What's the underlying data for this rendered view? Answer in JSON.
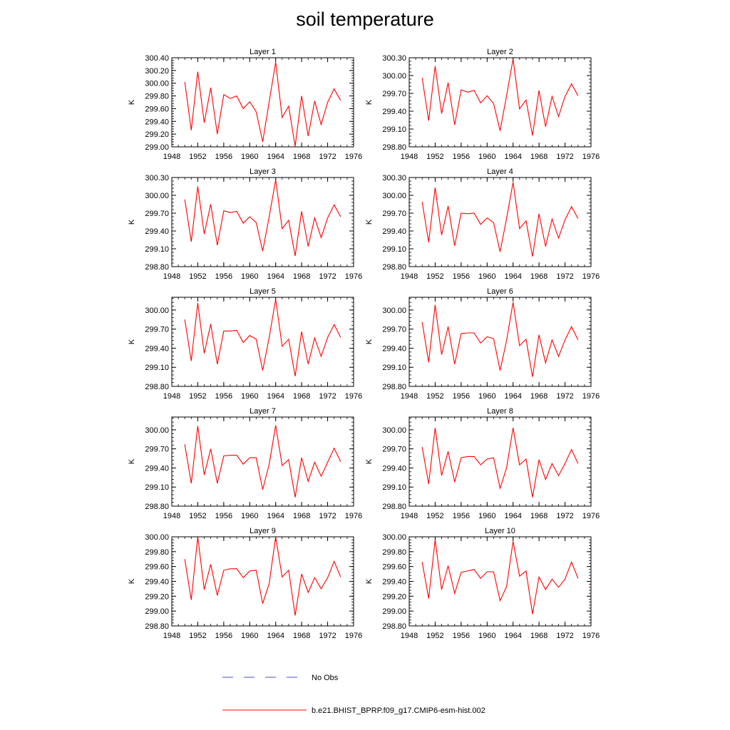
{
  "title": "soil temperature",
  "colors": {
    "model_line": "#ff0000",
    "obs_line": "#4b4bd0",
    "axis": "#000000"
  },
  "legend": {
    "obs_label": "No Obs",
    "model_label": "b.e21.BHIST_BPRP.f09_g17.CMIP6-esm-hist.002"
  },
  "chart_data": [
    {
      "type": "line",
      "title": "Layer 1",
      "ylabel": "K",
      "xlim": [
        1948,
        1976
      ],
      "ylim": [
        299.0,
        300.4
      ],
      "xticks": [
        1948,
        1952,
        1956,
        1960,
        1964,
        1968,
        1972,
        1976
      ],
      "yticks": [
        "299.00",
        "299.20",
        "299.40",
        "299.60",
        "299.80",
        "300.00",
        "300.20",
        "300.40"
      ],
      "x": [
        1950,
        1951,
        1952,
        1953,
        1954,
        1955,
        1956,
        1957,
        1958,
        1959,
        1960,
        1961,
        1962,
        1963,
        1964,
        1965,
        1966,
        1967,
        1968,
        1969,
        1970,
        1971,
        1972,
        1973,
        1974
      ],
      "series": [
        {
          "name": "b.e21.BHIST_BPRP.f09_g17.CMIP6-esm-hist.002",
          "values": [
            300.02,
            299.26,
            300.18,
            299.38,
            299.93,
            299.2,
            299.82,
            299.76,
            299.8,
            299.6,
            299.71,
            299.55,
            299.08,
            299.71,
            300.33,
            299.46,
            299.64,
            299.01,
            299.8,
            299.17,
            299.72,
            299.35,
            299.7,
            299.91,
            299.73
          ]
        }
      ]
    },
    {
      "type": "line",
      "title": "Layer 2",
      "ylabel": "K",
      "xlim": [
        1948,
        1976
      ],
      "ylim": [
        298.8,
        300.3
      ],
      "xticks": [
        1948,
        1952,
        1956,
        1960,
        1964,
        1968,
        1972,
        1976
      ],
      "yticks": [
        "298.80",
        "299.10",
        "299.40",
        "299.70",
        "300.00",
        "300.30"
      ],
      "x": [
        1950,
        1951,
        1952,
        1953,
        1954,
        1955,
        1956,
        1957,
        1958,
        1959,
        1960,
        1961,
        1962,
        1963,
        1964,
        1965,
        1966,
        1967,
        1968,
        1969,
        1970,
        1971,
        1972,
        1973,
        1974
      ],
      "series": [
        {
          "name": "b.e21.BHIST_BPRP.f09_g17.CMIP6-esm-hist.002",
          "values": [
            299.96,
            299.24,
            300.16,
            299.36,
            299.88,
            299.17,
            299.76,
            299.72,
            299.75,
            299.54,
            299.66,
            299.53,
            299.07,
            299.66,
            300.28,
            299.44,
            299.59,
            298.99,
            299.75,
            299.14,
            299.65,
            299.31,
            299.65,
            299.86,
            299.66
          ]
        }
      ]
    },
    {
      "type": "line",
      "title": "Layer 3",
      "ylabel": "K",
      "xlim": [
        1948,
        1976
      ],
      "ylim": [
        298.8,
        300.3
      ],
      "xticks": [
        1948,
        1952,
        1956,
        1960,
        1964,
        1968,
        1972,
        1976
      ],
      "yticks": [
        "298.80",
        "299.10",
        "299.40",
        "299.70",
        "300.00",
        "300.30"
      ],
      "x": [
        1950,
        1951,
        1952,
        1953,
        1954,
        1955,
        1956,
        1957,
        1958,
        1959,
        1960,
        1961,
        1962,
        1963,
        1964,
        1965,
        1966,
        1967,
        1968,
        1969,
        1970,
        1971,
        1972,
        1973,
        1974
      ],
      "series": [
        {
          "name": "b.e21.BHIST_BPRP.f09_g17.CMIP6-esm-hist.002",
          "values": [
            299.93,
            299.22,
            300.15,
            299.35,
            299.85,
            299.16,
            299.74,
            299.71,
            299.73,
            299.53,
            299.64,
            299.54,
            299.06,
            299.64,
            300.26,
            299.44,
            299.58,
            298.98,
            299.73,
            299.14,
            299.62,
            299.29,
            299.62,
            299.84,
            299.64
          ]
        }
      ]
    },
    {
      "type": "line",
      "title": "Layer 4",
      "ylabel": "K",
      "xlim": [
        1948,
        1976
      ],
      "ylim": [
        298.8,
        300.3
      ],
      "xticks": [
        1948,
        1952,
        1956,
        1960,
        1964,
        1968,
        1972,
        1976
      ],
      "yticks": [
        "298.80",
        "299.10",
        "299.40",
        "299.70",
        "300.00",
        "300.30"
      ],
      "x": [
        1950,
        1951,
        1952,
        1953,
        1954,
        1955,
        1956,
        1957,
        1958,
        1959,
        1960,
        1961,
        1962,
        1963,
        1964,
        1965,
        1966,
        1967,
        1968,
        1969,
        1970,
        1971,
        1972,
        1973,
        1974
      ],
      "series": [
        {
          "name": "b.e21.BHIST_BPRP.f09_g17.CMIP6-esm-hist.002",
          "values": [
            299.89,
            299.21,
            300.13,
            299.33,
            299.82,
            299.15,
            299.7,
            299.69,
            299.7,
            299.51,
            299.62,
            299.54,
            299.05,
            299.61,
            300.22,
            299.44,
            299.57,
            298.97,
            299.69,
            299.14,
            299.6,
            299.28,
            299.59,
            299.81,
            299.61
          ]
        }
      ]
    },
    {
      "type": "line",
      "title": "Layer 5",
      "ylabel": "K",
      "xlim": [
        1948,
        1976
      ],
      "ylim": [
        298.8,
        300.2
      ],
      "xticks": [
        1948,
        1952,
        1956,
        1960,
        1964,
        1968,
        1972,
        1976
      ],
      "yticks": [
        "298.80",
        "299.10",
        "299.40",
        "299.70",
        "300.00"
      ],
      "x": [
        1950,
        1951,
        1952,
        1953,
        1954,
        1955,
        1956,
        1957,
        1958,
        1959,
        1960,
        1961,
        1962,
        1963,
        1964,
        1965,
        1966,
        1967,
        1968,
        1969,
        1970,
        1971,
        1972,
        1973,
        1974
      ],
      "series": [
        {
          "name": "b.e21.BHIST_BPRP.f09_g17.CMIP6-esm-hist.002",
          "values": [
            299.85,
            299.2,
            300.11,
            299.32,
            299.78,
            299.15,
            299.67,
            299.67,
            299.68,
            299.49,
            299.6,
            299.54,
            299.05,
            299.57,
            300.17,
            299.43,
            299.54,
            298.96,
            299.66,
            299.15,
            299.56,
            299.27,
            299.57,
            299.77,
            299.57
          ]
        }
      ]
    },
    {
      "type": "line",
      "title": "Layer 6",
      "ylabel": "K",
      "xlim": [
        1948,
        1976
      ],
      "ylim": [
        298.8,
        300.2
      ],
      "xticks": [
        1948,
        1952,
        1956,
        1960,
        1964,
        1968,
        1972,
        1976
      ],
      "yticks": [
        "298.80",
        "299.10",
        "299.40",
        "299.70",
        "300.00"
      ],
      "x": [
        1950,
        1951,
        1952,
        1953,
        1954,
        1955,
        1956,
        1957,
        1958,
        1959,
        1960,
        1961,
        1962,
        1963,
        1964,
        1965,
        1966,
        1967,
        1968,
        1969,
        1970,
        1971,
        1972,
        1973,
        1974
      ],
      "series": [
        {
          "name": "b.e21.BHIST_BPRP.f09_g17.CMIP6-esm-hist.002",
          "values": [
            299.81,
            299.18,
            300.08,
            299.3,
            299.74,
            299.15,
            299.63,
            299.64,
            299.64,
            299.48,
            299.58,
            299.55,
            299.05,
            299.52,
            300.12,
            299.44,
            299.54,
            298.95,
            299.61,
            299.17,
            299.53,
            299.27,
            299.53,
            299.74,
            299.53
          ]
        }
      ]
    },
    {
      "type": "line",
      "title": "Layer 7",
      "ylabel": "K",
      "xlim": [
        1948,
        1976
      ],
      "ylim": [
        298.8,
        300.2
      ],
      "xticks": [
        1948,
        1952,
        1956,
        1960,
        1964,
        1968,
        1972,
        1976
      ],
      "yticks": [
        "298.80",
        "299.10",
        "299.40",
        "299.70",
        "300.00"
      ],
      "x": [
        1950,
        1951,
        1952,
        1953,
        1954,
        1955,
        1956,
        1957,
        1958,
        1959,
        1960,
        1961,
        1962,
        1963,
        1964,
        1965,
        1966,
        1967,
        1968,
        1969,
        1970,
        1971,
        1972,
        1973,
        1974
      ],
      "series": [
        {
          "name": "b.e21.BHIST_BPRP.f09_g17.CMIP6-esm-hist.002",
          "values": [
            299.77,
            299.16,
            300.06,
            299.29,
            299.7,
            299.16,
            299.59,
            299.6,
            299.6,
            299.46,
            299.56,
            299.56,
            299.06,
            299.46,
            300.07,
            299.44,
            299.53,
            298.94,
            299.56,
            299.19,
            299.49,
            299.27,
            299.49,
            299.71,
            299.5
          ]
        }
      ]
    },
    {
      "type": "line",
      "title": "Layer 8",
      "ylabel": "K",
      "xlim": [
        1948,
        1976
      ],
      "ylim": [
        298.8,
        300.2
      ],
      "xticks": [
        1948,
        1952,
        1956,
        1960,
        1964,
        1968,
        1972,
        1976
      ],
      "yticks": [
        "298.80",
        "299.10",
        "299.40",
        "299.70",
        "300.00"
      ],
      "x": [
        1950,
        1951,
        1952,
        1953,
        1954,
        1955,
        1956,
        1957,
        1958,
        1959,
        1960,
        1961,
        1962,
        1963,
        1964,
        1965,
        1966,
        1967,
        1968,
        1969,
        1970,
        1971,
        1972,
        1973,
        1974
      ],
      "series": [
        {
          "name": "b.e21.BHIST_BPRP.f09_g17.CMIP6-esm-hist.002",
          "values": [
            299.73,
            299.15,
            300.03,
            299.28,
            299.66,
            299.18,
            299.56,
            299.58,
            299.58,
            299.45,
            299.54,
            299.56,
            299.08,
            299.4,
            300.03,
            299.45,
            299.54,
            298.94,
            299.53,
            299.22,
            299.47,
            299.28,
            299.47,
            299.69,
            299.47
          ]
        }
      ]
    },
    {
      "type": "line",
      "title": "Layer 9",
      "ylabel": "K",
      "xlim": [
        1948,
        1976
      ],
      "ylim": [
        298.8,
        300.0
      ],
      "xticks": [
        1948,
        1952,
        1956,
        1960,
        1964,
        1968,
        1972,
        1976
      ],
      "yticks": [
        "298.80",
        "299.00",
        "299.20",
        "299.40",
        "299.60",
        "299.80",
        "300.00"
      ],
      "x": [
        1950,
        1951,
        1952,
        1953,
        1954,
        1955,
        1956,
        1957,
        1958,
        1959,
        1960,
        1961,
        1962,
        1963,
        1964,
        1965,
        1966,
        1967,
        1968,
        1969,
        1970,
        1971,
        1972,
        1973,
        1974
      ],
      "series": [
        {
          "name": "b.e21.BHIST_BPRP.f09_g17.CMIP6-esm-hist.002",
          "values": [
            299.7,
            299.15,
            300.0,
            299.29,
            299.63,
            299.21,
            299.55,
            299.57,
            299.57,
            299.45,
            299.54,
            299.55,
            299.1,
            299.37,
            300.0,
            299.46,
            299.55,
            298.94,
            299.5,
            299.25,
            299.45,
            299.3,
            299.45,
            299.67,
            299.46
          ]
        }
      ]
    },
    {
      "type": "line",
      "title": "Layer 10",
      "ylabel": "K",
      "xlim": [
        1948,
        1976
      ],
      "ylim": [
        298.8,
        300.0
      ],
      "xticks": [
        1948,
        1952,
        1956,
        1960,
        1964,
        1968,
        1972,
        1976
      ],
      "yticks": [
        "298.80",
        "299.00",
        "299.20",
        "299.40",
        "299.60",
        "299.80",
        "300.00"
      ],
      "x": [
        1950,
        1951,
        1952,
        1953,
        1954,
        1955,
        1956,
        1957,
        1958,
        1959,
        1960,
        1961,
        1962,
        1963,
        1964,
        1965,
        1966,
        1967,
        1968,
        1969,
        1970,
        1971,
        1972,
        1973,
        1974
      ],
      "series": [
        {
          "name": "b.e21.BHIST_BPRP.f09_g17.CMIP6-esm-hist.002",
          "values": [
            299.66,
            299.17,
            299.96,
            299.29,
            299.61,
            299.24,
            299.52,
            299.54,
            299.56,
            299.44,
            299.53,
            299.53,
            299.14,
            299.33,
            299.94,
            299.47,
            299.54,
            298.96,
            299.46,
            299.29,
            299.43,
            299.32,
            299.43,
            299.66,
            299.44
          ]
        }
      ]
    }
  ]
}
